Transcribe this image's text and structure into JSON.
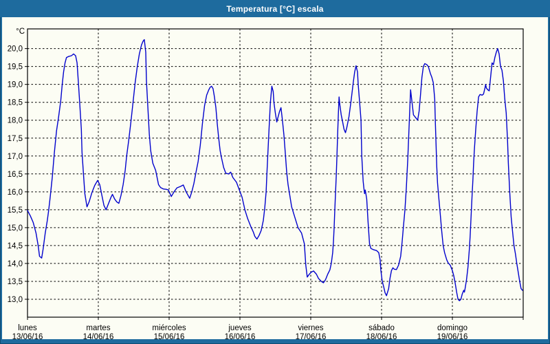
{
  "window": {
    "title": "Temperatura [°C] escala"
  },
  "colors": {
    "titlebar_bg": "#1e6b9e",
    "frame_bg": "#1e6b9e",
    "frame_outline": "#0d4a70",
    "panel_bg": "#fcfdf4",
    "line": "#0000cc",
    "grid": "#000000",
    "axis_text": "#000000",
    "title_text": "#ffffff"
  },
  "chart_data": {
    "type": "line",
    "title": "Temperatura [°C] escala",
    "ylabel": "°C",
    "grid": true,
    "legend_position": "none",
    "y_axis": {
      "unit_label": "°C",
      "min": 13.0,
      "max": 20.0,
      "step": 0.5,
      "tick_labels": [
        "20,0",
        "19,5",
        "19,0",
        "18,5",
        "18,0",
        "17,5",
        "17,0",
        "16,5",
        "16,0",
        "15,5",
        "15,0",
        "14,5",
        "14,0",
        "13,5",
        "13,0"
      ]
    },
    "x_axis": {
      "days": [
        {
          "label": "lunes",
          "date": "13/06/16"
        },
        {
          "label": "martes",
          "date": "14/06/16"
        },
        {
          "label": "miércoles",
          "date": "15/06/16"
        },
        {
          "label": "jueves",
          "date": "16/06/16"
        },
        {
          "label": "viernes",
          "date": "17/06/16"
        },
        {
          "label": "sábado",
          "date": "18/06/16"
        },
        {
          "label": "domingo",
          "date": "19/06/16"
        }
      ]
    },
    "series": [
      {
        "name": "Temperatura [°C]",
        "x_unit": "days_since_start",
        "points": [
          [
            0.0,
            15.48
          ],
          [
            0.04,
            15.33
          ],
          [
            0.08,
            15.15
          ],
          [
            0.12,
            14.85
          ],
          [
            0.15,
            14.5
          ],
          [
            0.17,
            14.2
          ],
          [
            0.2,
            14.15
          ],
          [
            0.22,
            14.4
          ],
          [
            0.25,
            14.85
          ],
          [
            0.28,
            15.2
          ],
          [
            0.3,
            15.5
          ],
          [
            0.32,
            15.85
          ],
          [
            0.35,
            16.4
          ],
          [
            0.38,
            17.1
          ],
          [
            0.41,
            17.7
          ],
          [
            0.44,
            18.1
          ],
          [
            0.47,
            18.55
          ],
          [
            0.49,
            19.0
          ],
          [
            0.51,
            19.35
          ],
          [
            0.53,
            19.6
          ],
          [
            0.55,
            19.75
          ],
          [
            0.58,
            19.78
          ],
          [
            0.62,
            19.8
          ],
          [
            0.65,
            19.85
          ],
          [
            0.68,
            19.8
          ],
          [
            0.7,
            19.6
          ],
          [
            0.72,
            19.0
          ],
          [
            0.74,
            18.4
          ],
          [
            0.76,
            17.75
          ],
          [
            0.77,
            17.1
          ],
          [
            0.79,
            16.5
          ],
          [
            0.81,
            15.95
          ],
          [
            0.84,
            15.58
          ],
          [
            0.87,
            15.72
          ],
          [
            0.91,
            15.98
          ],
          [
            0.95,
            16.18
          ],
          [
            0.99,
            16.32
          ],
          [
            1.02,
            16.2
          ],
          [
            1.05,
            15.9
          ],
          [
            1.08,
            15.62
          ],
          [
            1.11,
            15.5
          ],
          [
            1.15,
            15.7
          ],
          [
            1.18,
            15.85
          ],
          [
            1.2,
            15.93
          ],
          [
            1.23,
            15.8
          ],
          [
            1.26,
            15.72
          ],
          [
            1.29,
            15.68
          ],
          [
            1.32,
            15.9
          ],
          [
            1.35,
            16.2
          ],
          [
            1.38,
            16.6
          ],
          [
            1.4,
            17.0
          ],
          [
            1.43,
            17.45
          ],
          [
            1.46,
            17.95
          ],
          [
            1.49,
            18.5
          ],
          [
            1.52,
            19.05
          ],
          [
            1.55,
            19.5
          ],
          [
            1.58,
            19.85
          ],
          [
            1.61,
            20.1
          ],
          [
            1.63,
            20.2
          ],
          [
            1.65,
            20.25
          ],
          [
            1.67,
            19.9
          ],
          [
            1.68,
            19.1
          ],
          [
            1.7,
            18.35
          ],
          [
            1.72,
            17.6
          ],
          [
            1.74,
            17.15
          ],
          [
            1.77,
            16.8
          ],
          [
            1.81,
            16.6
          ],
          [
            1.85,
            16.2
          ],
          [
            1.88,
            16.12
          ],
          [
            1.92,
            16.08
          ],
          [
            1.96,
            16.07
          ],
          [
            1.99,
            16.05
          ],
          [
            2.03,
            15.87
          ],
          [
            2.07,
            16.0
          ],
          [
            2.11,
            16.11
          ],
          [
            2.16,
            16.15
          ],
          [
            2.2,
            16.19
          ],
          [
            2.24,
            16.0
          ],
          [
            2.29,
            15.82
          ],
          [
            2.32,
            16.0
          ],
          [
            2.35,
            16.24
          ],
          [
            2.38,
            16.55
          ],
          [
            2.41,
            16.85
          ],
          [
            2.44,
            17.3
          ],
          [
            2.47,
            17.9
          ],
          [
            2.5,
            18.4
          ],
          [
            2.53,
            18.7
          ],
          [
            2.56,
            18.85
          ],
          [
            2.58,
            18.92
          ],
          [
            2.6,
            18.95
          ],
          [
            2.62,
            18.88
          ],
          [
            2.64,
            18.65
          ],
          [
            2.66,
            18.35
          ],
          [
            2.68,
            17.9
          ],
          [
            2.7,
            17.5
          ],
          [
            2.72,
            17.15
          ],
          [
            2.74,
            16.95
          ],
          [
            2.77,
            16.68
          ],
          [
            2.8,
            16.52
          ],
          [
            2.84,
            16.5
          ],
          [
            2.87,
            16.55
          ],
          [
            2.9,
            16.4
          ],
          [
            2.95,
            16.27
          ],
          [
            2.99,
            16.06
          ],
          [
            3.03,
            15.85
          ],
          [
            3.07,
            15.5
          ],
          [
            3.11,
            15.25
          ],
          [
            3.15,
            15.05
          ],
          [
            3.19,
            14.87
          ],
          [
            3.21,
            14.76
          ],
          [
            3.24,
            14.68
          ],
          [
            3.27,
            14.78
          ],
          [
            3.3,
            14.92
          ],
          [
            3.33,
            15.2
          ],
          [
            3.35,
            15.55
          ],
          [
            3.37,
            16.0
          ],
          [
            3.38,
            16.45
          ],
          [
            3.39,
            16.9
          ],
          [
            3.41,
            17.7
          ],
          [
            3.43,
            18.5
          ],
          [
            3.45,
            18.95
          ],
          [
            3.47,
            18.8
          ],
          [
            3.48,
            18.5
          ],
          [
            3.5,
            18.2
          ],
          [
            3.52,
            17.95
          ],
          [
            3.54,
            18.1
          ],
          [
            3.56,
            18.25
          ],
          [
            3.58,
            18.35
          ],
          [
            3.6,
            18.0
          ],
          [
            3.62,
            17.6
          ],
          [
            3.64,
            17.1
          ],
          [
            3.66,
            16.55
          ],
          [
            3.68,
            16.2
          ],
          [
            3.7,
            15.95
          ],
          [
            3.73,
            15.58
          ],
          [
            3.78,
            15.26
          ],
          [
            3.82,
            15.0
          ],
          [
            3.87,
            14.85
          ],
          [
            3.91,
            14.55
          ],
          [
            3.93,
            13.95
          ],
          [
            3.95,
            13.62
          ],
          [
            3.98,
            13.7
          ],
          [
            4.01,
            13.76
          ],
          [
            4.04,
            13.79
          ],
          [
            4.08,
            13.7
          ],
          [
            4.11,
            13.58
          ],
          [
            4.15,
            13.5
          ],
          [
            4.18,
            13.46
          ],
          [
            4.21,
            13.55
          ],
          [
            4.24,
            13.7
          ],
          [
            4.27,
            13.82
          ],
          [
            4.29,
            14.0
          ],
          [
            4.31,
            14.3
          ],
          [
            4.32,
            14.6
          ],
          [
            4.33,
            15.0
          ],
          [
            4.34,
            15.5
          ],
          [
            4.35,
            16.0
          ],
          [
            4.36,
            16.45
          ],
          [
            4.37,
            17.0
          ],
          [
            4.38,
            17.6
          ],
          [
            4.39,
            18.2
          ],
          [
            4.4,
            18.65
          ],
          [
            4.41,
            18.45
          ],
          [
            4.43,
            18.15
          ],
          [
            4.45,
            17.95
          ],
          [
            4.47,
            17.75
          ],
          [
            4.49,
            17.65
          ],
          [
            4.51,
            17.8
          ],
          [
            4.54,
            18.1
          ],
          [
            4.57,
            18.55
          ],
          [
            4.6,
            19.05
          ],
          [
            4.62,
            19.35
          ],
          [
            4.64,
            19.52
          ],
          [
            4.66,
            19.35
          ],
          [
            4.67,
            19.0
          ],
          [
            4.69,
            18.5
          ],
          [
            4.71,
            18.0
          ],
          [
            4.72,
            17.0
          ],
          [
            4.74,
            16.3
          ],
          [
            4.75,
            16.1
          ],
          [
            4.76,
            15.95
          ],
          [
            4.77,
            16.05
          ],
          [
            4.79,
            15.8
          ],
          [
            4.81,
            15.15
          ],
          [
            4.83,
            14.55
          ],
          [
            4.85,
            14.42
          ],
          [
            4.89,
            14.38
          ],
          [
            4.93,
            14.36
          ],
          [
            4.96,
            14.3
          ],
          [
            4.98,
            14.1
          ],
          [
            4.99,
            13.8
          ],
          [
            5.01,
            13.5
          ],
          [
            5.03,
            13.35
          ],
          [
            5.05,
            13.18
          ],
          [
            5.07,
            13.1
          ],
          [
            5.1,
            13.3
          ],
          [
            5.12,
            13.6
          ],
          [
            5.14,
            13.8
          ],
          [
            5.16,
            13.88
          ],
          [
            5.18,
            13.84
          ],
          [
            5.21,
            13.83
          ],
          [
            5.24,
            13.95
          ],
          [
            5.27,
            14.2
          ],
          [
            5.29,
            14.6
          ],
          [
            5.31,
            15.05
          ],
          [
            5.33,
            15.5
          ],
          [
            5.35,
            16.1
          ],
          [
            5.37,
            16.9
          ],
          [
            5.39,
            17.9
          ],
          [
            5.41,
            18.85
          ],
          [
            5.43,
            18.5
          ],
          [
            5.45,
            18.15
          ],
          [
            5.47,
            18.1
          ],
          [
            5.49,
            18.05
          ],
          [
            5.51,
            18.0
          ],
          [
            5.53,
            18.25
          ],
          [
            5.55,
            18.7
          ],
          [
            5.57,
            19.2
          ],
          [
            5.59,
            19.5
          ],
          [
            5.61,
            19.58
          ],
          [
            5.64,
            19.55
          ],
          [
            5.66,
            19.5
          ],
          [
            5.69,
            19.3
          ],
          [
            5.71,
            19.2
          ],
          [
            5.73,
            19.05
          ],
          [
            5.75,
            18.6
          ],
          [
            5.76,
            17.9
          ],
          [
            5.77,
            17.3
          ],
          [
            5.78,
            16.7
          ],
          [
            5.79,
            16.25
          ],
          [
            5.81,
            15.8
          ],
          [
            5.83,
            15.35
          ],
          [
            5.85,
            14.9
          ],
          [
            5.87,
            14.5
          ],
          [
            5.89,
            14.3
          ],
          [
            5.92,
            14.1
          ],
          [
            5.94,
            14.02
          ],
          [
            5.97,
            13.95
          ],
          [
            6.0,
            13.8
          ],
          [
            6.02,
            13.65
          ],
          [
            6.04,
            13.45
          ],
          [
            6.06,
            13.2
          ],
          [
            6.08,
            13.0
          ],
          [
            6.1,
            12.96
          ],
          [
            6.12,
            13.0
          ],
          [
            6.14,
            13.15
          ],
          [
            6.16,
            13.25
          ],
          [
            6.17,
            13.2
          ],
          [
            6.18,
            13.3
          ],
          [
            6.2,
            13.55
          ],
          [
            6.22,
            13.9
          ],
          [
            6.24,
            14.4
          ],
          [
            6.25,
            14.75
          ],
          [
            6.26,
            15.15
          ],
          [
            6.27,
            15.55
          ],
          [
            6.28,
            15.95
          ],
          [
            6.29,
            16.35
          ],
          [
            6.3,
            16.8
          ],
          [
            6.31,
            17.15
          ],
          [
            6.33,
            17.75
          ],
          [
            6.35,
            18.25
          ],
          [
            6.37,
            18.65
          ],
          [
            6.39,
            18.72
          ],
          [
            6.42,
            18.7
          ],
          [
            6.44,
            18.73
          ],
          [
            6.46,
            18.9
          ],
          [
            6.47,
            19.0
          ],
          [
            6.48,
            18.9
          ],
          [
            6.5,
            18.85
          ],
          [
            6.52,
            18.82
          ],
          [
            6.54,
            19.2
          ],
          [
            6.56,
            19.6
          ],
          [
            6.58,
            19.55
          ],
          [
            6.6,
            19.75
          ],
          [
            6.62,
            19.9
          ],
          [
            6.64,
            20.0
          ],
          [
            6.66,
            19.85
          ],
          [
            6.68,
            19.5
          ],
          [
            6.7,
            19.4
          ],
          [
            6.72,
            19.1
          ],
          [
            6.74,
            18.6
          ],
          [
            6.76,
            18.2
          ],
          [
            6.78,
            17.4
          ],
          [
            6.79,
            16.8
          ],
          [
            6.81,
            16.0
          ],
          [
            6.83,
            15.3
          ],
          [
            6.85,
            14.9
          ],
          [
            6.87,
            14.5
          ],
          [
            6.89,
            14.27
          ],
          [
            6.91,
            14.0
          ],
          [
            6.93,
            13.75
          ],
          [
            6.95,
            13.5
          ],
          [
            6.97,
            13.3
          ],
          [
            6.99,
            13.25
          ]
        ]
      }
    ]
  }
}
